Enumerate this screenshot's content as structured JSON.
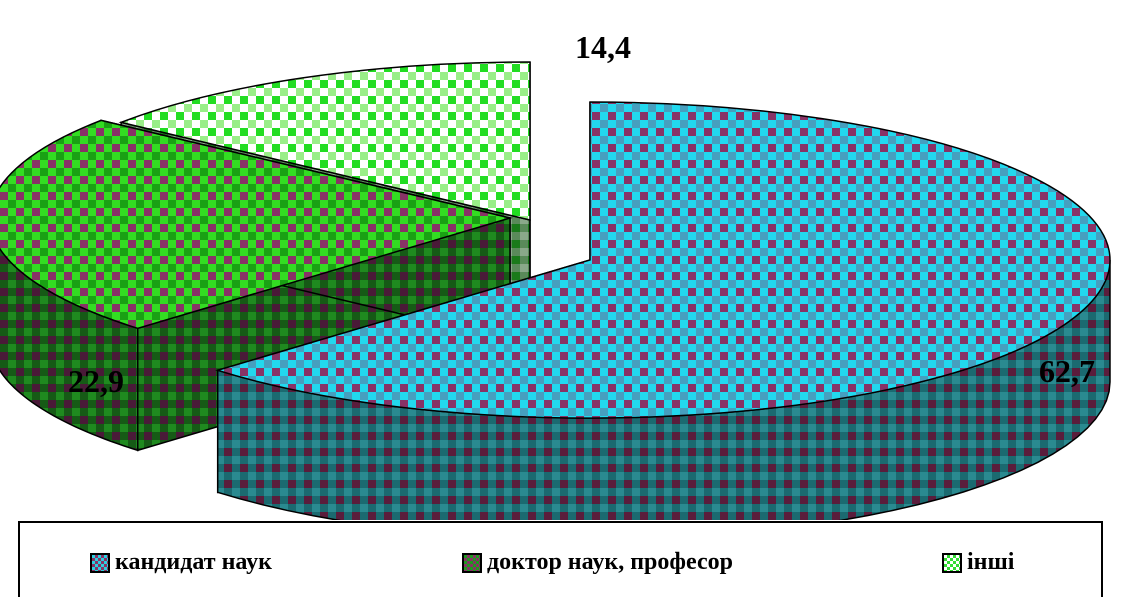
{
  "chart_data": {
    "type": "pie",
    "title": "",
    "style": "3d-exploded",
    "categories": [
      "кандидат наук",
      "доктор наук, професор",
      "інші"
    ],
    "values": [
      62.7,
      22.9,
      14.4
    ],
    "value_labels": [
      "62,7",
      "22,9",
      "14,4"
    ],
    "colors": [
      "#2aa7b3",
      "#1a8a1a",
      "#66ee55"
    ],
    "legend_position": "bottom"
  }
}
